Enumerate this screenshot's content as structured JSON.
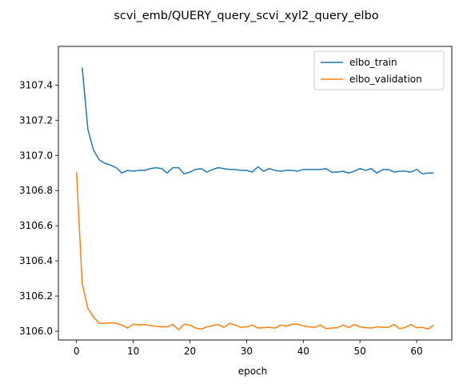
{
  "chart_data": {
    "type": "line",
    "title": "scvi_emb/QUERY_query_scvi_xyl2_query_elbo",
    "xlabel": "epoch",
    "ylabel": "",
    "xlim": [
      -3.2,
      66.2
    ],
    "ylim": [
      3105.95,
      3107.62
    ],
    "x_ticks": [
      0,
      10,
      20,
      30,
      40,
      50,
      60
    ],
    "y_ticks": [
      3106.0,
      3106.2,
      3106.4,
      3106.6,
      3106.8,
      3107.0,
      3107.2,
      3107.4
    ],
    "y_tick_labels": [
      "3106.0",
      "3106.2",
      "3106.4",
      "3106.6",
      "3106.8",
      "3107.0",
      "3107.2",
      "3107.4"
    ],
    "legend_position": "top-right",
    "grid": false,
    "series": [
      {
        "name": "elbo_train",
        "color": "#1f77b4",
        "x_start": 1,
        "values": [
          3107.5,
          3107.15,
          3107.03,
          3106.975,
          3106.955,
          3106.945,
          3106.93,
          3106.9,
          3106.915,
          3106.91,
          3106.915,
          3106.915,
          3106.925,
          3106.93,
          3106.925,
          3106.9,
          3106.93,
          3106.93,
          3106.895,
          3106.905,
          3106.92,
          3106.925,
          3106.905,
          3106.92,
          3106.93,
          3106.925,
          3106.92,
          3106.92,
          3106.915,
          3106.915,
          3106.905,
          3106.935,
          3106.91,
          3106.925,
          3106.915,
          3106.91,
          3106.915,
          3106.915,
          3106.91,
          3106.92,
          3106.92,
          3106.92,
          3106.92,
          3106.925,
          3106.905,
          3106.905,
          3106.91,
          3106.9,
          3106.91,
          3106.925,
          3106.915,
          3106.925,
          3106.9,
          3106.92,
          3106.92,
          3106.905,
          3106.91,
          3106.91,
          3106.905,
          3106.92,
          3106.895,
          3106.9,
          3106.9
        ]
      },
      {
        "name": "elbo_validation",
        "color": "#ff7f0e",
        "x_start": 0,
        "values": [
          3106.905,
          3106.27,
          3106.13,
          3106.08,
          3106.045,
          3106.045,
          3106.048,
          3106.045,
          3106.035,
          3106.018,
          3106.04,
          3106.035,
          3106.038,
          3106.032,
          3106.028,
          3106.025,
          3106.025,
          3106.038,
          3106.008,
          3106.04,
          3106.035,
          3106.018,
          3106.012,
          3106.025,
          3106.032,
          3106.038,
          3106.022,
          3106.045,
          3106.035,
          3106.022,
          3106.025,
          3106.035,
          3106.018,
          3106.02,
          3106.022,
          3106.018,
          3106.035,
          3106.028,
          3106.04,
          3106.04,
          3106.03,
          3106.025,
          3106.022,
          3106.035,
          3106.015,
          3106.018,
          3106.02,
          3106.035,
          3106.022,
          3106.038,
          3106.025,
          3106.02,
          3106.018,
          3106.025,
          3106.022,
          3106.022,
          3106.038,
          3106.015,
          3106.022,
          3106.038,
          3106.02,
          3106.022,
          3106.012,
          3106.035
        ]
      }
    ]
  }
}
